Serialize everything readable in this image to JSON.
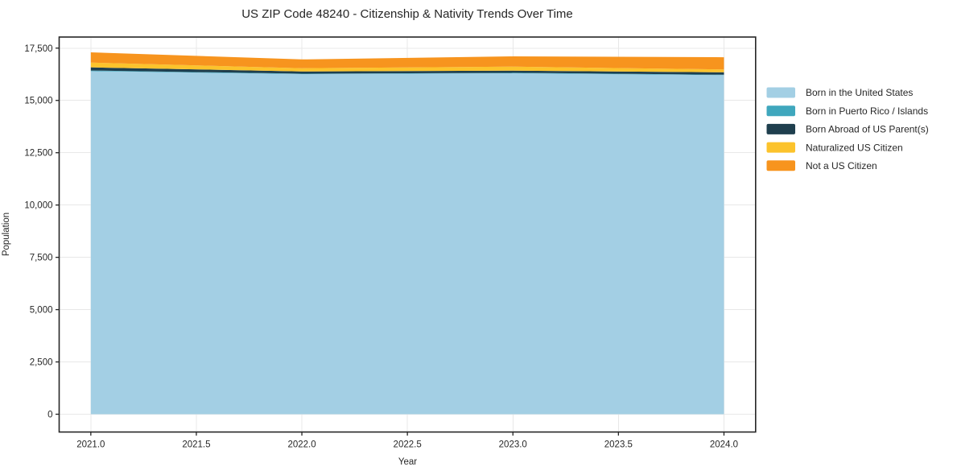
{
  "chart_data": {
    "type": "area",
    "stacked": true,
    "title": "US ZIP Code 48240 - Citizenship & Nativity Trends Over Time",
    "xlabel": "Year",
    "ylabel": "Population",
    "x": [
      2021,
      2022,
      2023,
      2024
    ],
    "series": [
      {
        "name": "Born in the United States",
        "color": "#a3cfe4",
        "values": [
          16400,
          16260,
          16300,
          16210
        ]
      },
      {
        "name": "Born in Puerto Rico / Islands",
        "color": "#3fa7bd",
        "values": [
          30,
          20,
          20,
          20
        ]
      },
      {
        "name": "Born Abroad of US Parent(s)",
        "color": "#1f3f4e",
        "values": [
          150,
          105,
          105,
          115
        ]
      },
      {
        "name": "Naturalized US Citizen",
        "color": "#fcc32c",
        "values": [
          230,
          155,
          190,
          135
        ]
      },
      {
        "name": "Not a US Citizen",
        "color": "#f7941e",
        "values": [
          490,
          420,
          490,
          585
        ]
      }
    ],
    "totals": [
      17300,
      16960,
      17105,
      17065
    ],
    "xlim": [
      2020.85,
      2024.15
    ],
    "ylim": [
      -850,
      18030
    ],
    "xticks": [
      2021.0,
      2021.5,
      2022.0,
      2022.5,
      2023.0,
      2023.5,
      2024.0
    ],
    "xtick_labels": [
      "2021.0",
      "2021.5",
      "2022.0",
      "2022.5",
      "2023.0",
      "2023.5",
      "2024.0"
    ],
    "yticks": [
      0,
      2500,
      5000,
      7500,
      10000,
      12500,
      15000,
      17500
    ],
    "ytick_labels": [
      "0",
      "2,500",
      "5,000",
      "7,500",
      "10,000",
      "12,500",
      "15,000",
      "17,500"
    ],
    "grid": true,
    "legend_position": "right-outside",
    "colors": {
      "grid": "#e8e8e8",
      "spine": "#262626",
      "text": "#262626",
      "background": "#ffffff"
    }
  }
}
